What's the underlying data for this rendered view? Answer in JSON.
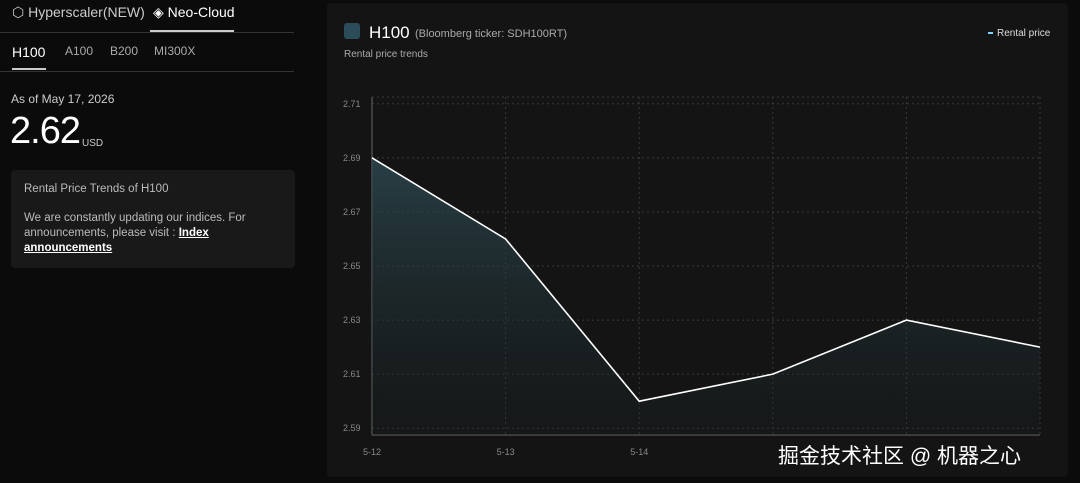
{
  "tabs": [
    "Hyperscaler(NEW)",
    "Neo-Cloud"
  ],
  "subtabs": [
    "H100",
    "A100",
    "B200",
    "MI300X"
  ],
  "summary": {
    "as_of": "As of May 17, 2026",
    "price": "2.62",
    "unit": "USD"
  },
  "info": {
    "title": "Rental Price Trends of H100",
    "text": "We are constantly updating our indices. For announcements, please visit :",
    "link": "Index announcements"
  },
  "watermark": "掘金技术社区 @ 机器之心",
  "chart_data": {
    "type": "line",
    "title": "H100",
    "subtitle": "(Bloomberg ticker: SDH100RT)",
    "caption": "Rental price trends",
    "x": [
      "5-12",
      "5-13",
      "5-14",
      null,
      null,
      null
    ],
    "series": [
      {
        "name": "Rental price",
        "color": "#ffffff",
        "values": [
          2.69,
          2.66,
          2.6,
          2.61,
          2.63,
          2.62
        ]
      }
    ],
    "ylim": [
      2.5875,
      2.7125
    ],
    "yticks": [
      2.59,
      2.61,
      2.63,
      2.65,
      2.67,
      2.69,
      2.71
    ],
    "grid": true,
    "legend": "top-right"
  }
}
